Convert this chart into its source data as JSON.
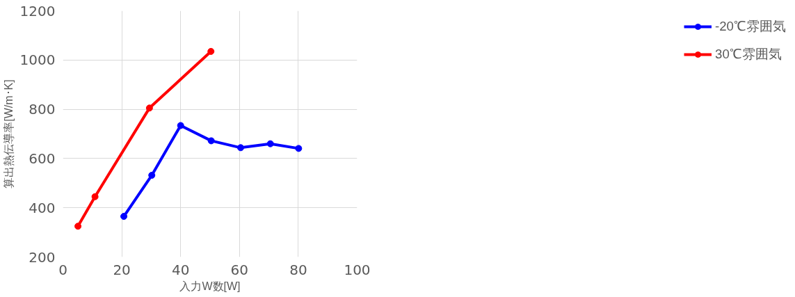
{
  "chart_data": {
    "type": "line",
    "xlabel": "入力W数[W]",
    "ylabel": "算出熱伝導率[W/m･K]",
    "xlim": [
      0,
      100
    ],
    "xticks": [
      0,
      20,
      40,
      60,
      80,
      100
    ],
    "ylim": [
      200,
      1200
    ],
    "yticks": [
      200,
      400,
      600,
      800,
      1000,
      1200
    ],
    "grid": true,
    "legend": "right",
    "marker": "circle",
    "line_style": "solid",
    "series": [
      {
        "name": "-20℃雰囲気",
        "color": "#0000ff",
        "x": [
          20.7,
          30.2,
          40.0,
          50.4,
          60.4,
          70.5,
          80.1
        ],
        "values": [
          365,
          532,
          734,
          672,
          644,
          660,
          641
        ]
      },
      {
        "name": "30℃雰囲気",
        "color": "#ff0000",
        "x": [
          5.1,
          10.9,
          29.4,
          50.3
        ],
        "values": [
          325,
          445,
          805,
          1035
        ]
      }
    ]
  }
}
